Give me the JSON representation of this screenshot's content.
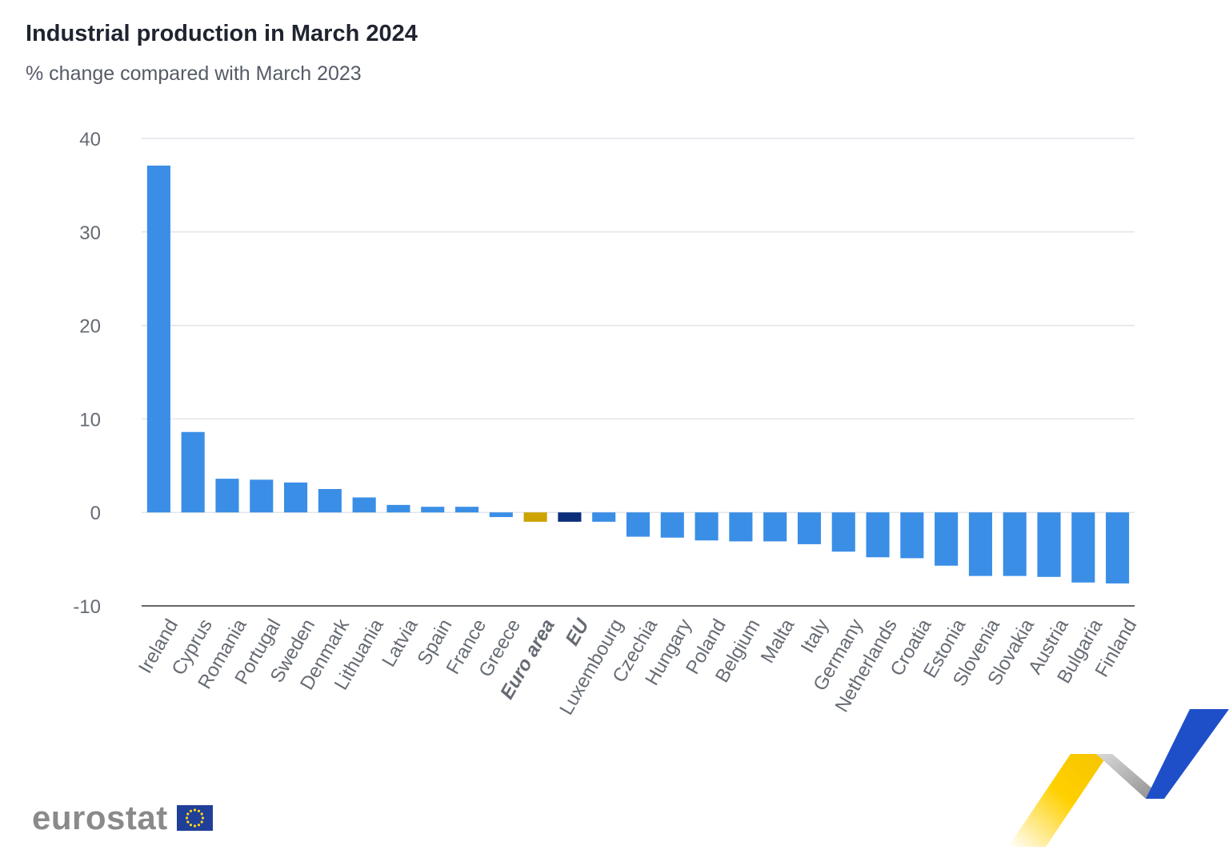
{
  "header": {
    "title": "Industrial production in March 2024",
    "subtitle": "% change compared with March 2023"
  },
  "branding": {
    "logo_text": "eurostat"
  },
  "colors": {
    "country_bar": "#3a8ee6",
    "euro_area_bar": "#cca300",
    "eu_bar": "#0d2e7a",
    "grid": "#e1e4ea",
    "axis_text": "#666b73",
    "axis_line": "#333333"
  },
  "chart_data": {
    "type": "bar",
    "title": "Industrial production in March 2024",
    "subtitle": "% change compared with March 2023",
    "ylim": [
      -10,
      40
    ],
    "yticks": [
      40,
      30,
      20,
      10,
      0,
      -10
    ],
    "grid": true,
    "categories": [
      "Ireland",
      "Cyprus",
      "Romania",
      "Portugal",
      "Sweden",
      "Denmark",
      "Lithuania",
      "Latvia",
      "Spain",
      "France",
      "Greece",
      "Euro area",
      "EU",
      "Luxembourg",
      "Czechia",
      "Hungary",
      "Poland",
      "Belgium",
      "Malta",
      "Italy",
      "Germany",
      "Netherlands",
      "Croatia",
      "Estonia",
      "Slovenia",
      "Slovakia",
      "Austria",
      "Bulgaria",
      "Finland"
    ],
    "values": [
      37.1,
      8.6,
      3.6,
      3.5,
      3.2,
      2.5,
      1.6,
      0.8,
      0.6,
      0.6,
      -0.5,
      -1.0,
      -1.0,
      -1.0,
      -2.6,
      -2.7,
      -3.0,
      -3.1,
      -3.1,
      -3.4,
      -4.2,
      -4.8,
      -4.9,
      -5.7,
      -6.8,
      -6.8,
      -6.9,
      -7.5,
      -7.6
    ],
    "highlight": {
      "Euro area": "euro_area",
      "EU": "eu"
    }
  }
}
